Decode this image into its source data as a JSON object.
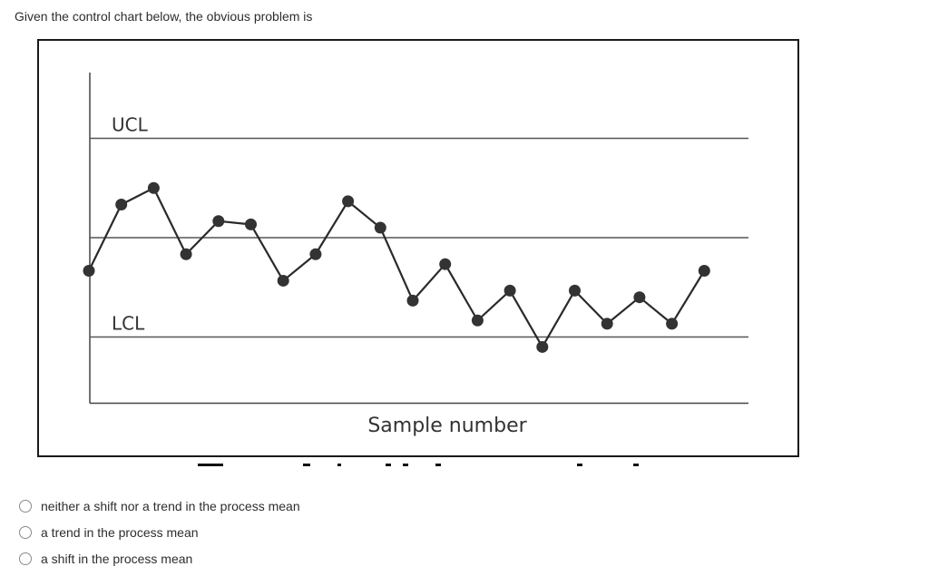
{
  "question": {
    "text": "Given the control chart below, the obvious problem is"
  },
  "chart_data": {
    "type": "line",
    "title": "",
    "xlabel": "Sample number",
    "ylabel": "",
    "control_lines": [
      {
        "label": "UCL",
        "value": 3
      },
      {
        "label": "",
        "value": 0
      },
      {
        "label": "LCL",
        "value": -3
      }
    ],
    "x_axis_value": -5,
    "ylim": [
      -5,
      5
    ],
    "grid": false,
    "x": [
      1,
      2,
      3,
      4,
      5,
      6,
      7,
      8,
      9,
      10,
      11,
      12,
      13,
      14,
      15,
      16,
      17,
      18,
      19,
      20
    ],
    "series": [
      {
        "values": [
          -1.0,
          1.0,
          1.5,
          -0.5,
          0.5,
          0.4,
          -1.3,
          -0.5,
          1.1,
          0.3,
          -1.9,
          -0.8,
          -2.5,
          -1.6,
          -3.3,
          -1.6,
          -2.6,
          -1.8,
          -2.6,
          -1.0
        ]
      }
    ]
  },
  "options": [
    {
      "label": "neither a shift nor a trend in the process mean"
    },
    {
      "label": "a trend in the process mean"
    },
    {
      "label": "a shift in the process mean"
    }
  ]
}
